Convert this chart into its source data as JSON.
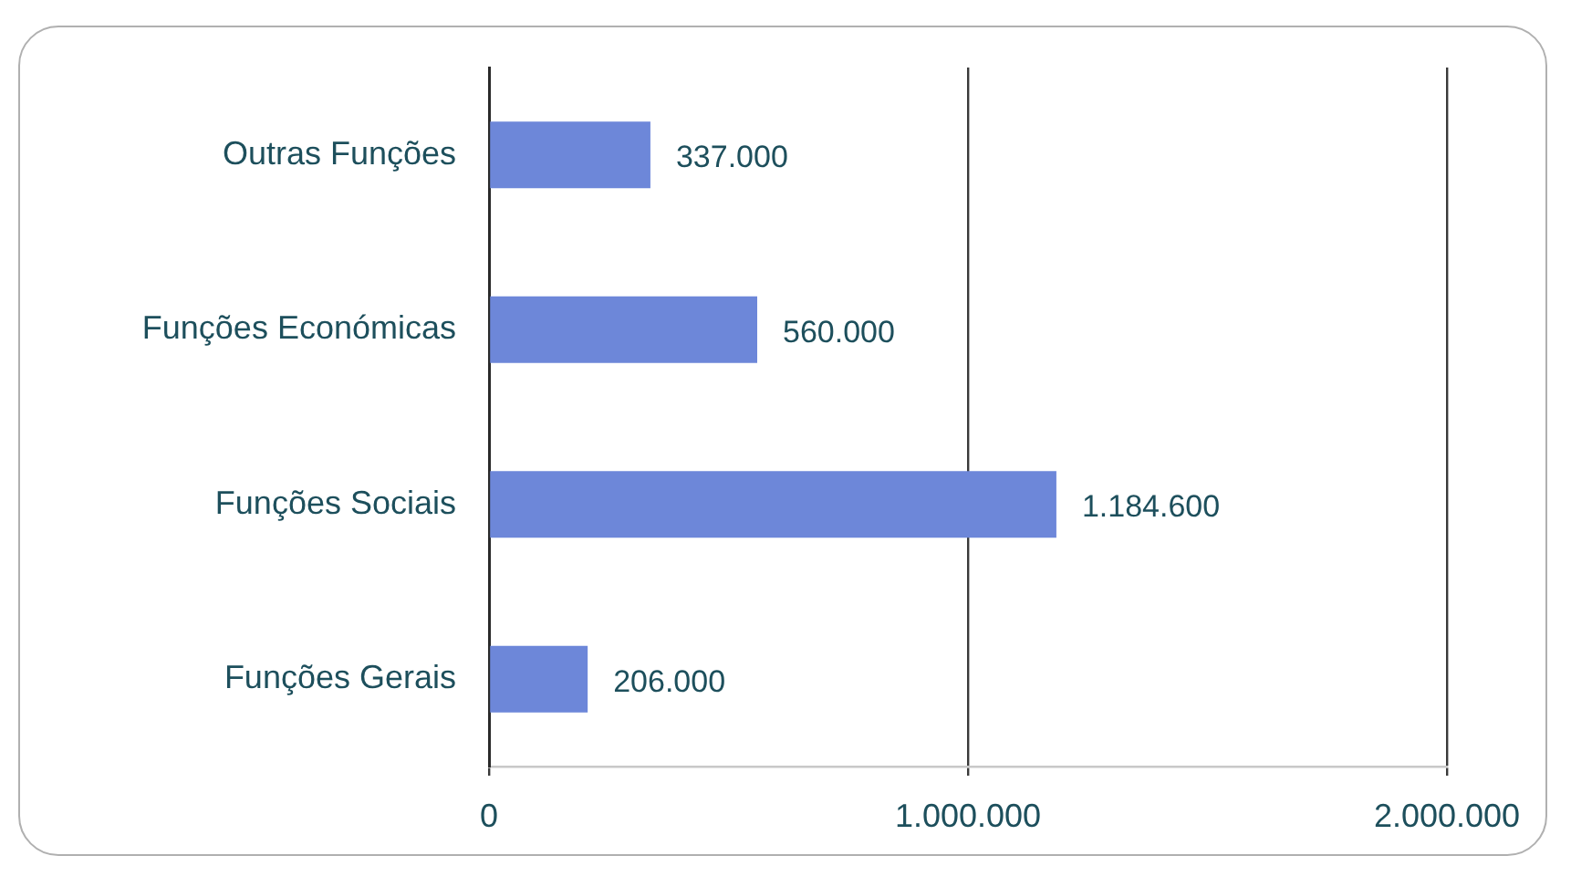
{
  "chart_data": {
    "type": "bar",
    "orientation": "horizontal",
    "categories": [
      "Outras Funções",
      "Funções Económicas",
      "Funções Sociais",
      "Funções Gerais"
    ],
    "values": [
      337000,
      560000,
      1184600,
      206000
    ],
    "color": "#6d87d9",
    "value_labels": [
      "337.000",
      "560.000",
      "1.184.600",
      "206.000"
    ],
    "xlim": [
      0,
      2000000
    ],
    "xticks": [
      0,
      {
        "value": 1000000,
        "label": "1.000.000"
      },
      {
        "value": 2000000,
        "label": "2.000.000"
      }
    ],
    "grid": "x",
    "legend": false
  }
}
